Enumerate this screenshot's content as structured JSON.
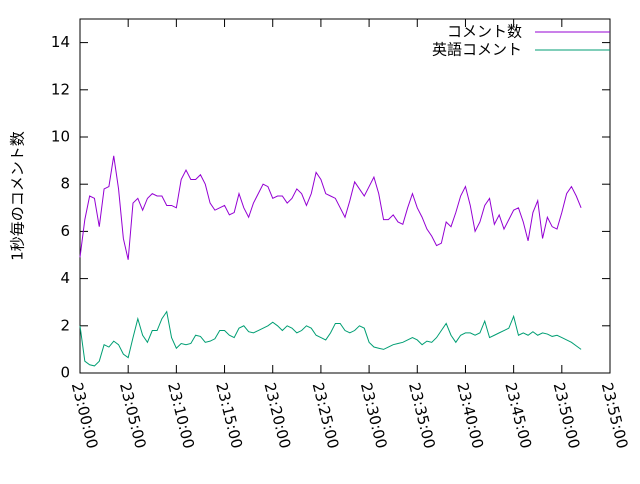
{
  "chart_data": {
    "type": "line",
    "ylabel": "1秒毎のコメント数",
    "x": [
      "23:00:00",
      "23:00:30",
      "23:01:00",
      "23:01:30",
      "23:02:00",
      "23:02:30",
      "23:03:00",
      "23:03:30",
      "23:04:00",
      "23:04:30",
      "23:05:00",
      "23:05:30",
      "23:06:00",
      "23:06:30",
      "23:07:00",
      "23:07:30",
      "23:08:00",
      "23:08:30",
      "23:09:00",
      "23:09:30",
      "23:10:00",
      "23:10:30",
      "23:11:00",
      "23:11:30",
      "23:12:00",
      "23:12:30",
      "23:13:00",
      "23:13:30",
      "23:14:00",
      "23:14:30",
      "23:15:00",
      "23:15:30",
      "23:16:00",
      "23:16:30",
      "23:17:00",
      "23:17:30",
      "23:18:00",
      "23:18:30",
      "23:19:00",
      "23:19:30",
      "23:20:00",
      "23:20:30",
      "23:21:00",
      "23:21:30",
      "23:22:00",
      "23:22:30",
      "23:23:00",
      "23:23:30",
      "23:24:00",
      "23:24:30",
      "23:25:00",
      "23:25:30",
      "23:26:00",
      "23:26:30",
      "23:27:00",
      "23:27:30",
      "23:28:00",
      "23:28:30",
      "23:29:00",
      "23:29:30",
      "23:30:00",
      "23:30:30",
      "23:31:00",
      "23:31:30",
      "23:32:00",
      "23:32:30",
      "23:33:00",
      "23:33:30",
      "23:34:00",
      "23:34:30",
      "23:35:00",
      "23:35:30",
      "23:36:00",
      "23:36:30",
      "23:37:00",
      "23:37:30",
      "23:38:00",
      "23:38:30",
      "23:39:00",
      "23:39:30",
      "23:40:00",
      "23:40:30",
      "23:41:00",
      "23:41:30",
      "23:42:00",
      "23:42:30",
      "23:43:00",
      "23:43:30",
      "23:44:00",
      "23:44:30",
      "23:45:00",
      "23:45:30",
      "23:46:00",
      "23:46:30",
      "23:47:00",
      "23:47:30",
      "23:48:00",
      "23:48:30",
      "23:49:00",
      "23:49:30",
      "23:50:00",
      "23:50:30",
      "23:51:00",
      "23:51:30",
      "23:52:00"
    ],
    "series": [
      {
        "name": "コメント数",
        "color": "#9400d3",
        "values": [
          4.9,
          6.5,
          7.5,
          7.4,
          6.2,
          7.8,
          7.9,
          9.2,
          7.8,
          5.7,
          4.8,
          7.2,
          7.4,
          6.9,
          7.4,
          7.6,
          7.5,
          7.5,
          7.1,
          7.1,
          7.0,
          8.2,
          8.6,
          8.2,
          8.2,
          8.4,
          8.0,
          7.2,
          6.9,
          7.0,
          7.1,
          6.7,
          6.8,
          7.6,
          7.0,
          6.6,
          7.2,
          7.6,
          8.0,
          7.9,
          7.4,
          7.5,
          7.5,
          7.2,
          7.4,
          7.8,
          7.6,
          7.1,
          7.6,
          8.5,
          8.2,
          7.6,
          7.5,
          7.4,
          7.0,
          6.6,
          7.3,
          8.1,
          7.8,
          7.5,
          7.9,
          8.3,
          7.6,
          6.5,
          6.5,
          6.7,
          6.4,
          6.3,
          7.0,
          7.6,
          7.0,
          6.6,
          6.1,
          5.8,
          5.4,
          5.5,
          6.4,
          6.2,
          6.8,
          7.5,
          7.9,
          7.1,
          6.0,
          6.4,
          7.1,
          7.4,
          6.3,
          6.7,
          6.1,
          6.5,
          6.9,
          7.0,
          6.4,
          5.6,
          6.8,
          7.3,
          5.7,
          6.6,
          6.2,
          6.1,
          6.8,
          7.6,
          7.9,
          7.5,
          7.0
        ]
      },
      {
        "name": "英語コメント",
        "color": "#009e73",
        "values": [
          2.0,
          0.5,
          0.35,
          0.3,
          0.5,
          1.2,
          1.1,
          1.35,
          1.2,
          0.8,
          0.65,
          1.5,
          2.3,
          1.6,
          1.3,
          1.8,
          1.8,
          2.3,
          2.6,
          1.5,
          1.05,
          1.25,
          1.2,
          1.25,
          1.6,
          1.55,
          1.3,
          1.35,
          1.45,
          1.8,
          1.8,
          1.6,
          1.5,
          1.9,
          2.0,
          1.75,
          1.7,
          1.8,
          1.9,
          2.0,
          2.15,
          2.0,
          1.8,
          2.0,
          1.9,
          1.7,
          1.8,
          2.0,
          1.9,
          1.6,
          1.5,
          1.4,
          1.7,
          2.1,
          2.1,
          1.8,
          1.7,
          1.8,
          2.0,
          1.9,
          1.3,
          1.1,
          1.05,
          1.0,
          1.1,
          1.2,
          1.25,
          1.3,
          1.4,
          1.5,
          1.4,
          1.2,
          1.35,
          1.3,
          1.5,
          1.8,
          2.1,
          1.6,
          1.3,
          1.6,
          1.7,
          1.7,
          1.6,
          1.7,
          2.2,
          1.5,
          1.6,
          1.7,
          1.8,
          1.9,
          2.4,
          1.6,
          1.7,
          1.6,
          1.75,
          1.6,
          1.7,
          1.65,
          1.55,
          1.6,
          1.5,
          1.4,
          1.3,
          1.15,
          1.0
        ]
      }
    ],
    "xlim": [
      "23:00:00",
      "23:55:00"
    ],
    "xticks": [
      "23:00:00",
      "23:05:00",
      "23:10:00",
      "23:15:00",
      "23:20:00",
      "23:25:00",
      "23:30:00",
      "23:35:00",
      "23:40:00",
      "23:45:00",
      "23:50:00",
      "23:55:00"
    ],
    "ylim": [
      0,
      15
    ],
    "yticks": [
      0,
      2,
      4,
      6,
      8,
      10,
      12,
      14
    ],
    "legend": "top-right"
  }
}
